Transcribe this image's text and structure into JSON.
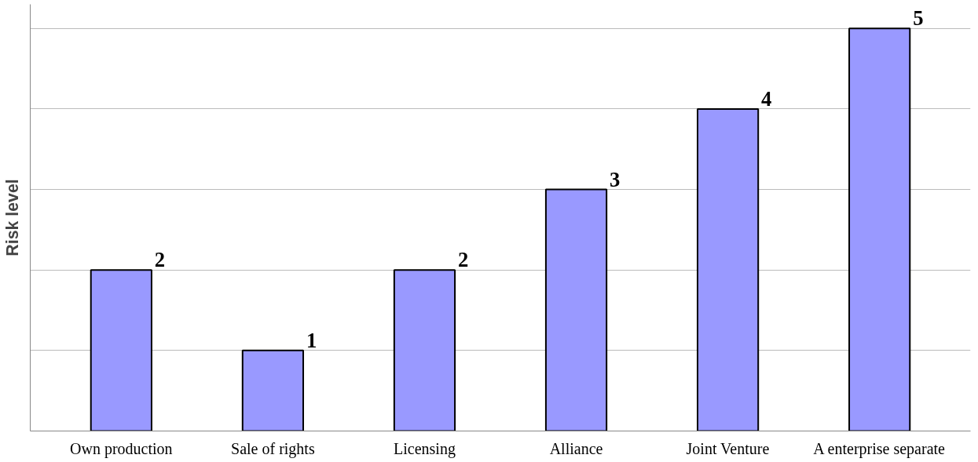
{
  "chart_data": {
    "type": "bar",
    "ylabel": "Risk level",
    "categories": [
      "Own production",
      "Sale of rights",
      "Licensing",
      "Alliance",
      "Joint Venture",
      "A enterprise separate"
    ],
    "values": [
      2,
      1,
      2,
      3,
      4,
      5
    ],
    "color": "#9999ff",
    "data_labels": true,
    "ylim": [
      0,
      5.3
    ],
    "yticks": [
      {
        "value": 0,
        "label": null
      },
      {
        "value": 1,
        "label": null
      },
      {
        "value": 2,
        "label": null
      },
      {
        "value": 3,
        "label": null
      },
      {
        "value": 4,
        "label": null
      },
      {
        "value": 5,
        "label": null
      }
    ],
    "grid": "y",
    "tick_labels": "x"
  }
}
